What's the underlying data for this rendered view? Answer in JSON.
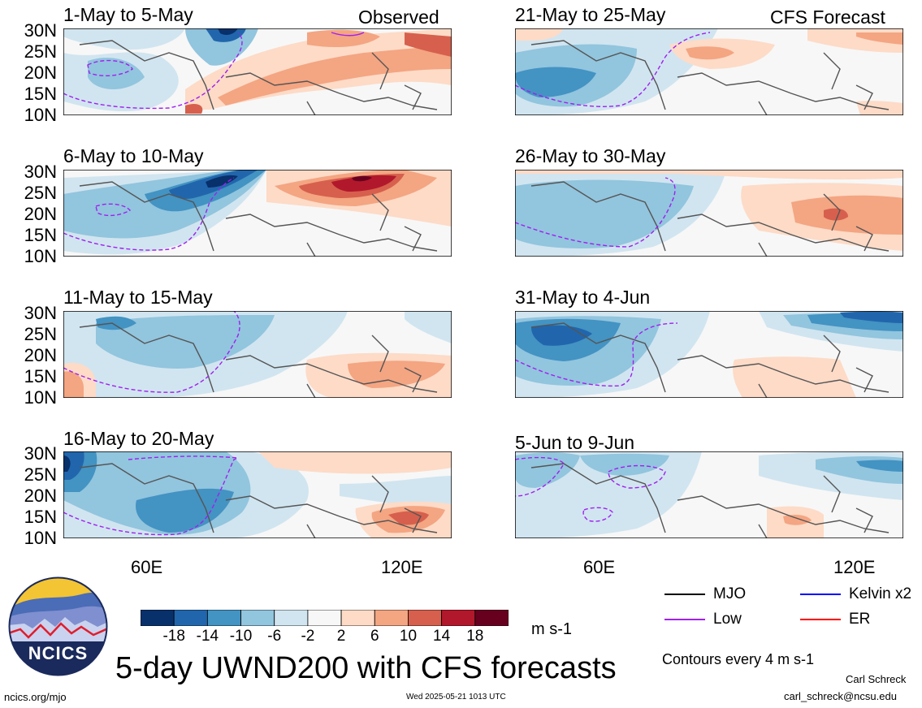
{
  "panels_left": [
    {
      "title": "1-May to 5-May",
      "tag": "Observed"
    },
    {
      "title": "6-May to 10-May",
      "tag": ""
    },
    {
      "title": "11-May to 15-May",
      "tag": ""
    },
    {
      "title": "16-May to 20-May",
      "tag": ""
    }
  ],
  "panels_right": [
    {
      "title": "21-May to 25-May",
      "tag": "CFS Forecast"
    },
    {
      "title": "26-May to 30-May",
      "tag": ""
    },
    {
      "title": "31-May to 4-Jun",
      "tag": ""
    },
    {
      "title": "5-Jun to 9-Jun",
      "tag": ""
    }
  ],
  "lat_labels": [
    "30N",
    "25N",
    "20N",
    "15N",
    "10N"
  ],
  "lon_labels": [
    "60E",
    "120E"
  ],
  "colorbar": {
    "colors": [
      "#08306b",
      "#2166ac",
      "#4393c3",
      "#92c5de",
      "#d1e5f0",
      "#f7f7f7",
      "#fddbc7",
      "#f4a582",
      "#d6604d",
      "#b2182b",
      "#67001f"
    ],
    "labels": [
      "-18",
      "-14",
      "-10",
      "-6",
      "-2",
      "2",
      "6",
      "10",
      "14",
      "18"
    ],
    "unit": "m s-1"
  },
  "legend": {
    "items": [
      {
        "label": "MJO",
        "color": "#000000"
      },
      {
        "label": "Kelvin x2",
        "color": "#0000ff"
      },
      {
        "label": "Low",
        "color": "#a020f0"
      },
      {
        "label": "ER",
        "color": "#ff0000"
      }
    ],
    "contours_note": "Contours every 4 m s-1"
  },
  "logo_text": "NCICS",
  "main_title": "5-day UWND200 with CFS forecasts",
  "footer": {
    "left": "ncics.org/mjo",
    "center": "Wed 2025-05-21 1013 UTC",
    "author": "Carl Schreck",
    "email": "carl_schreck@ncsu.edu"
  }
}
